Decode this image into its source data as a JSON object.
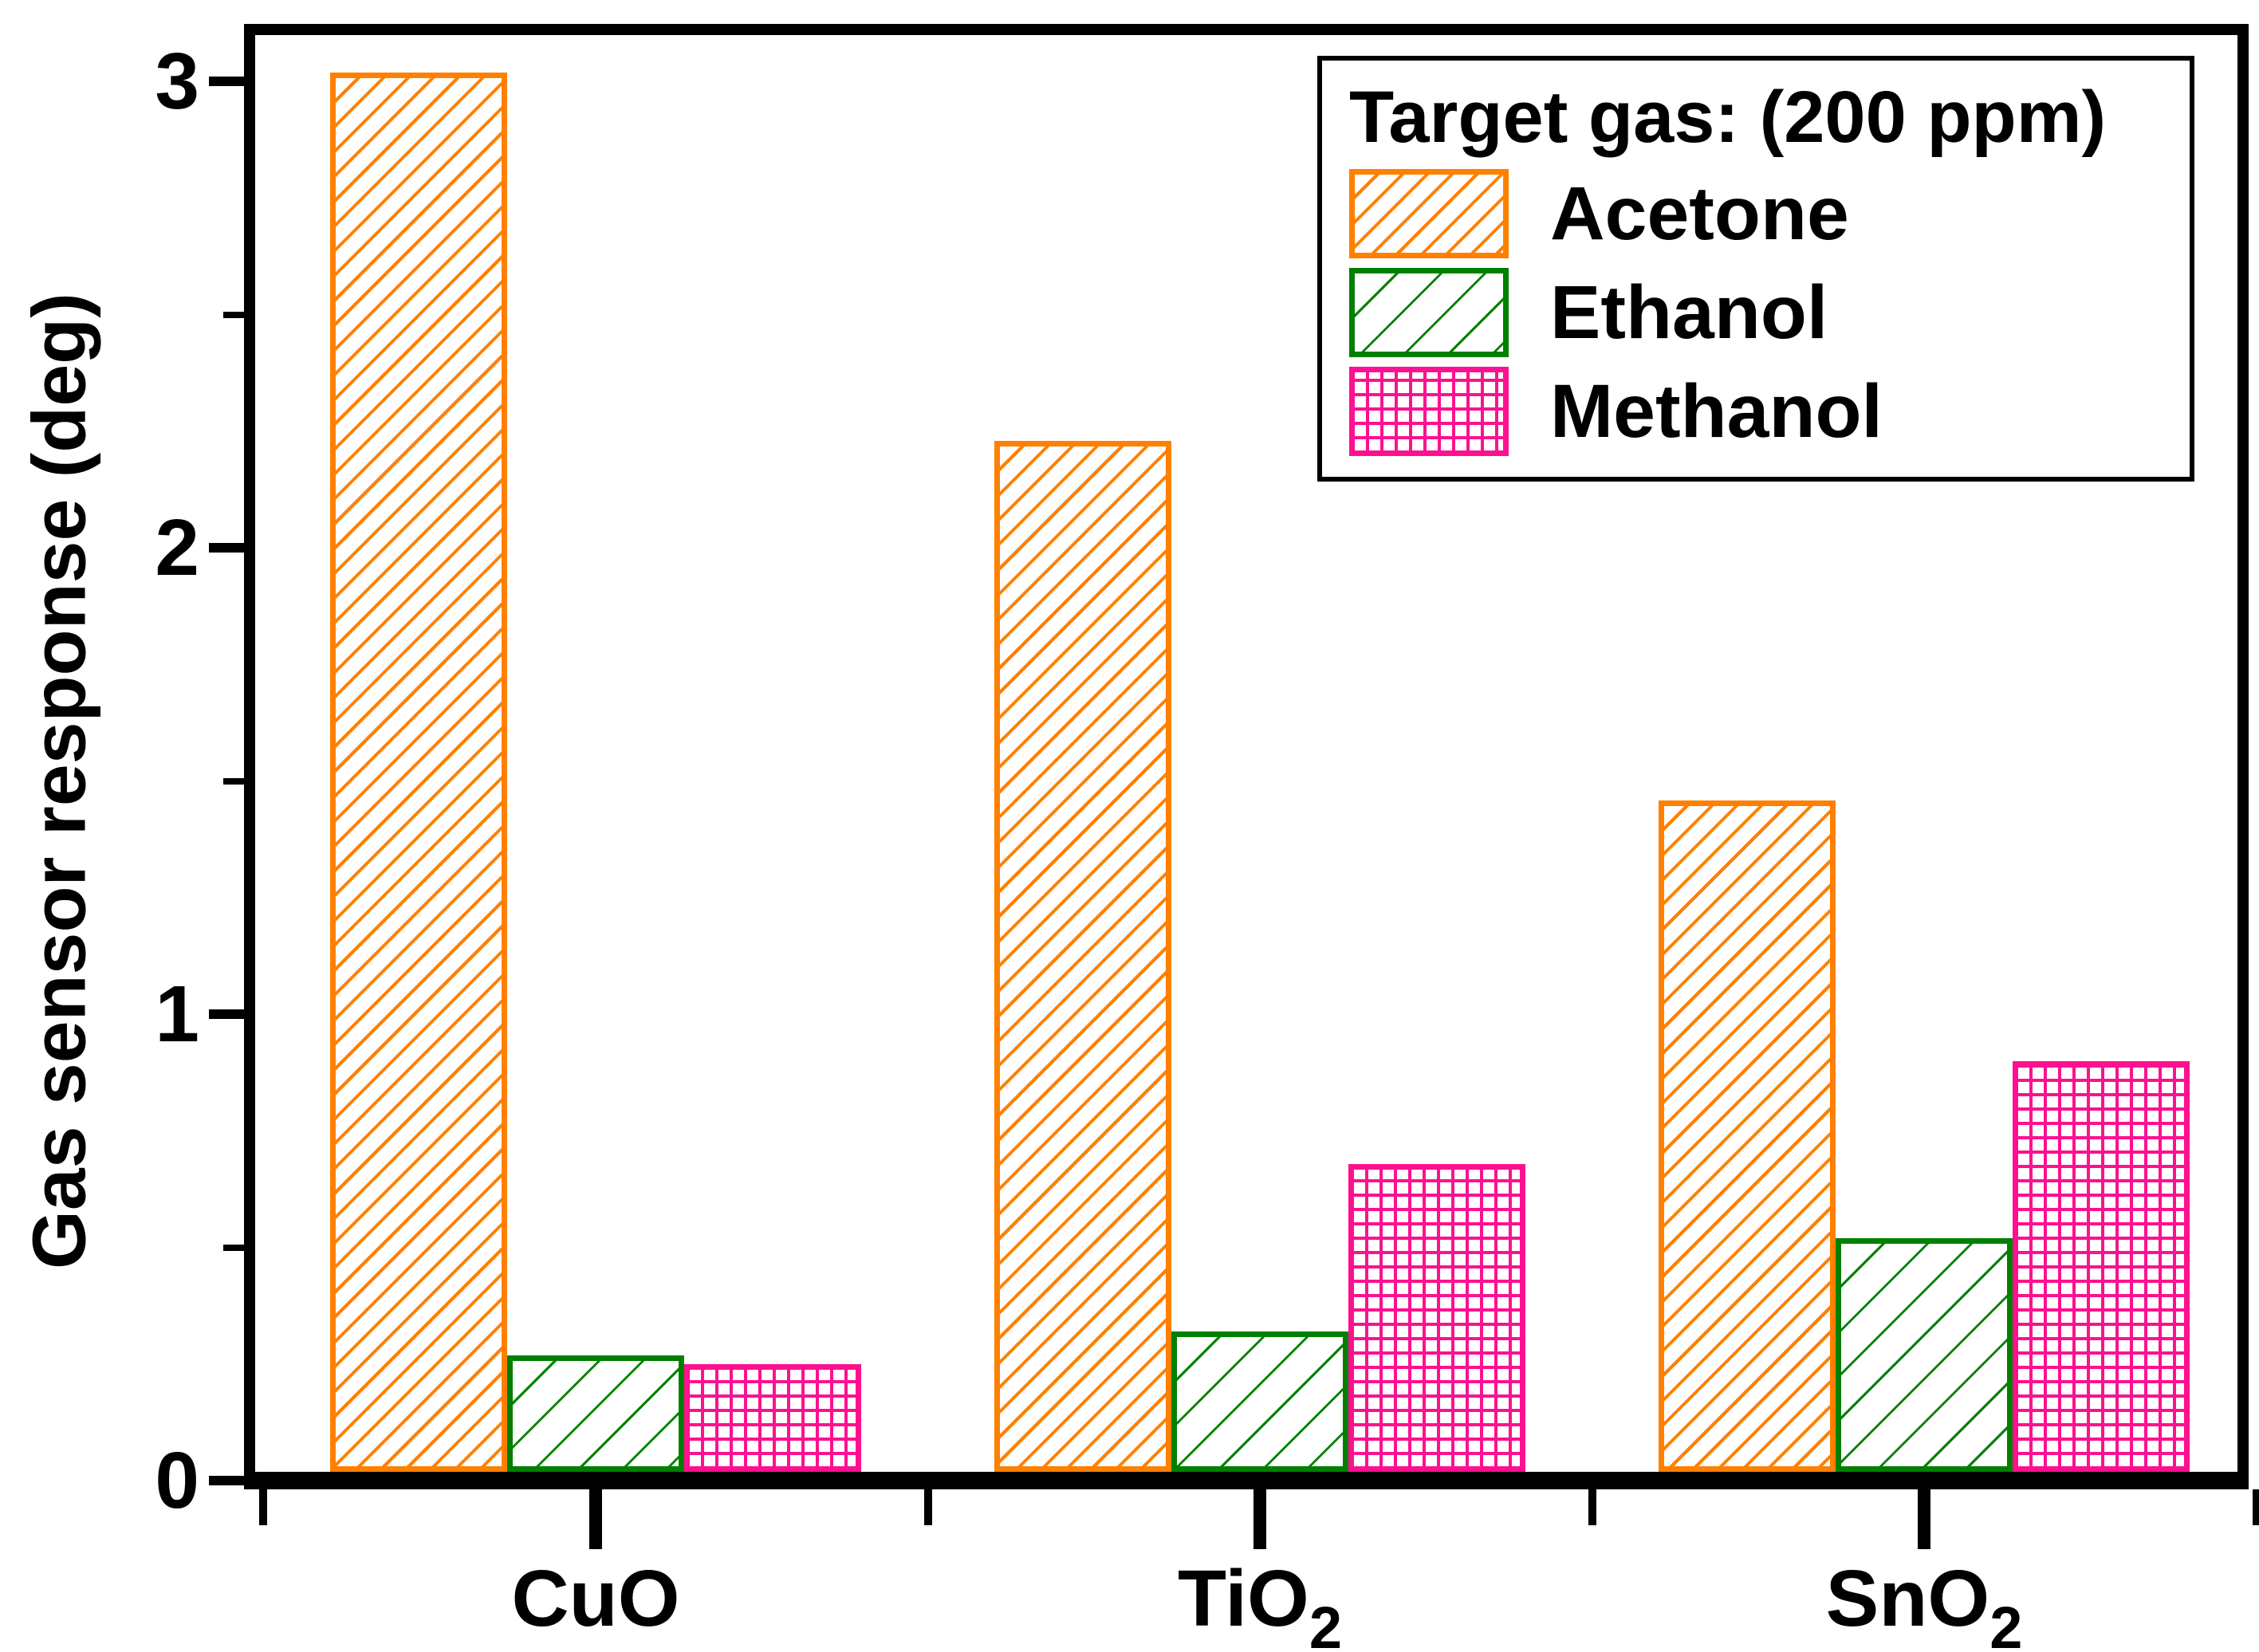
{
  "figure": {
    "background": "#FFFFFF"
  },
  "chart_data": {
    "type": "bar",
    "title": "",
    "ylabel": "Gas sensor response (deg)",
    "xlabel": "",
    "ylim": [
      0,
      3
    ],
    "yticks_major": [
      0,
      1,
      2,
      3
    ],
    "yticks_minor": [
      0.5,
      1.5,
      2.5
    ],
    "grid": false,
    "legend": {
      "title": "Target gas: (200 ppm)",
      "position": "top-right"
    },
    "categories": [
      {
        "label": "CuO",
        "base": "CuO",
        "sub": ""
      },
      {
        "label": "TiO2",
        "base": "TiO",
        "sub": "2"
      },
      {
        "label": "SnO2",
        "base": "SnO",
        "sub": "2"
      }
    ],
    "series": [
      {
        "name": "Acetone",
        "color": "#FF8000",
        "pattern": "diagonal-dense",
        "values": [
          3.0,
          2.21,
          1.44
        ]
      },
      {
        "name": "Ethanol",
        "color": "#008000",
        "pattern": "diagonal-sparse",
        "values": [
          0.25,
          0.3,
          0.5
        ]
      },
      {
        "name": "Methanol",
        "color": "#FF1090",
        "pattern": "grid",
        "values": [
          0.23,
          0.66,
          0.88
        ]
      }
    ]
  }
}
